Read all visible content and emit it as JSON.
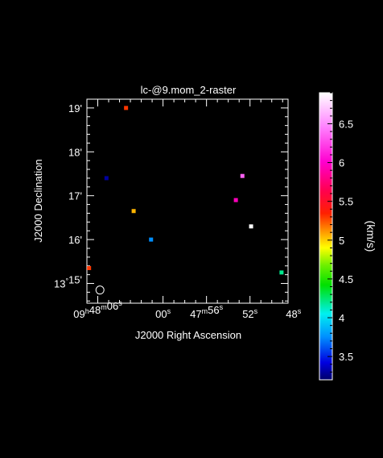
{
  "chart_data": {
    "type": "scatter",
    "title": "lc-@9.mom_2-raster",
    "xlabel": "J2000 Right Ascension",
    "ylabel": "J2000 Declination",
    "x_ticks": [
      "09h48m06s",
      "00s",
      "47m56s",
      "52s",
      "48s"
    ],
    "y_ticks": [
      "19'",
      "18'",
      "17'",
      "16'",
      "13°15'"
    ],
    "colorbar": {
      "label": "(km/s)",
      "range": [
        3.2,
        6.9
      ],
      "ticks": [
        "3.5",
        "4",
        "4.5",
        "5",
        "5.5",
        "6",
        "6.5"
      ],
      "tick_values": [
        3.5,
        4.0,
        4.5,
        5.0,
        5.5,
        6.0,
        6.5
      ]
    },
    "xlim_s": [
      -7.0,
      11.5
    ],
    "ylim_arcmin": [
      14.55,
      19.2
    ],
    "points": [
      {
        "ra_s": -3.4,
        "dec_arcmin": 19.0,
        "value": 5.3
      },
      {
        "ra_s": -6.8,
        "dec_arcmin": 15.35,
        "value": 5.3
      },
      {
        "ra_s": -5.2,
        "dec_arcmin": 17.4,
        "value": 3.3
      },
      {
        "ra_s": -2.7,
        "dec_arcmin": 16.65,
        "value": 5.05
      },
      {
        "ra_s": -1.1,
        "dec_arcmin": 16.0,
        "value": 3.75
      },
      {
        "ra_s": 7.3,
        "dec_arcmin": 17.45,
        "value": 6.35
      },
      {
        "ra_s": 6.7,
        "dec_arcmin": 16.9,
        "value": 5.95
      },
      {
        "ra_s": 8.1,
        "dec_arcmin": 16.3,
        "value": 6.9
      },
      {
        "ra_s": 10.9,
        "dec_arcmin": 15.25,
        "value": 4.2
      }
    ],
    "beam": {
      "ra_s": -5.8,
      "dec_arcmin": 14.85
    }
  },
  "colors": {
    "background": "#000000",
    "foreground": "#ffffff"
  }
}
